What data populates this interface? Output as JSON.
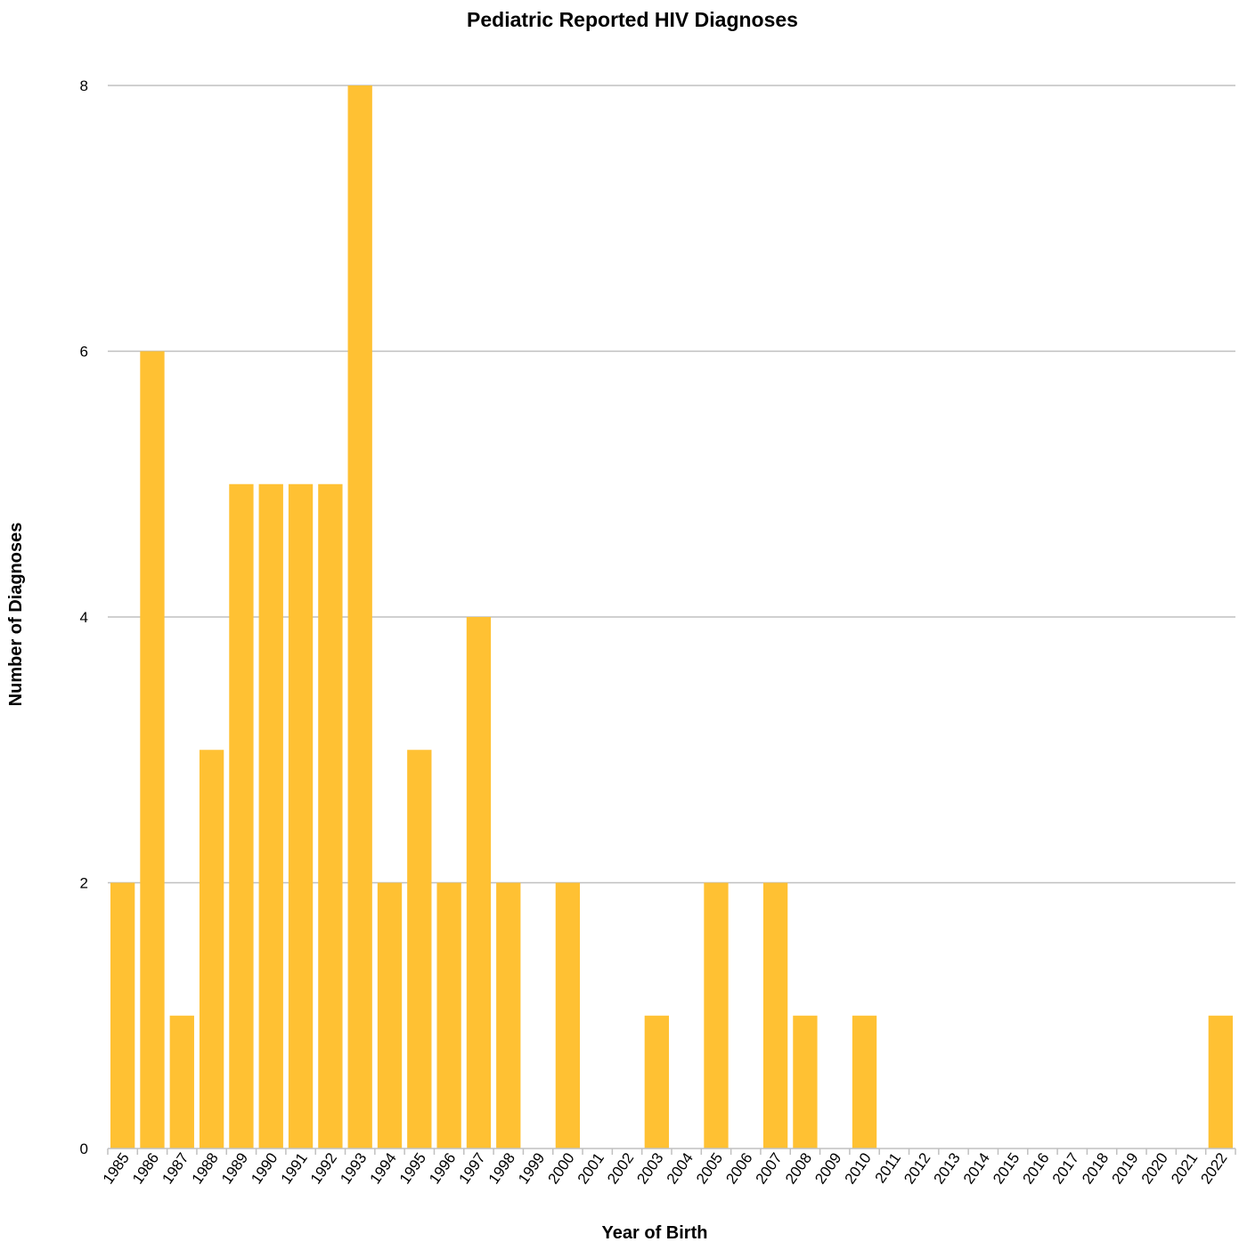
{
  "chart_data": {
    "type": "bar",
    "title": "Pediatric Reported HIV Diagnoses",
    "xlabel": "Year of Birth",
    "ylabel": "Number of Diagnoses",
    "categories": [
      "1985",
      "1986",
      "1987",
      "1988",
      "1989",
      "1990",
      "1991",
      "1992",
      "1993",
      "1994",
      "1995",
      "1996",
      "1997",
      "1998",
      "1999",
      "2000",
      "2001",
      "2002",
      "2003",
      "2004",
      "2005",
      "2006",
      "2007",
      "2008",
      "2009",
      "2010",
      "2011",
      "2012",
      "2013",
      "2014",
      "2015",
      "2016",
      "2017",
      "2018",
      "2019",
      "2020",
      "2021",
      "2022"
    ],
    "values": [
      2,
      6,
      1,
      3,
      5,
      5,
      5,
      5,
      8,
      2,
      3,
      2,
      4,
      2,
      0,
      2,
      0,
      0,
      1,
      0,
      2,
      0,
      2,
      1,
      0,
      1,
      0,
      0,
      0,
      0,
      0,
      0,
      0,
      0,
      0,
      0,
      0,
      1
    ],
    "ylim": [
      0,
      8
    ],
    "yticks": [
      "0",
      "2",
      "4",
      "6",
      "8"
    ],
    "grid": true,
    "legend": "none",
    "bar_color": "#FFC133",
    "grid_color": "#C0C0C0"
  }
}
